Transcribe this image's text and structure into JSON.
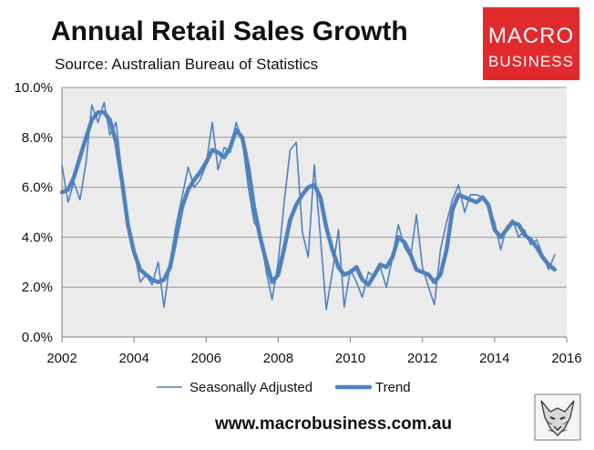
{
  "header": {
    "title": "Annual Retail Sales Growth",
    "subtitle": "Source: Australian Bureau of Statistics"
  },
  "logo": {
    "line1": "MACRO",
    "line2": "BUSINESS",
    "color": "#e12a2e"
  },
  "footer": {
    "url": "www.macrobusiness.com.au"
  },
  "colors": {
    "series": "#4f81bd",
    "plot_bg": "#ebebeb"
  },
  "chart_data": {
    "type": "line",
    "title": "Annual Retail Sales Growth",
    "xlim": [
      2002,
      2016
    ],
    "ylim": [
      0,
      10
    ],
    "x_ticks": [
      "2002",
      "2004",
      "2006",
      "2008",
      "2010",
      "2012",
      "2014",
      "2016"
    ],
    "y_ticks": [
      "0.0%",
      "2.0%",
      "4.0%",
      "6.0%",
      "8.0%",
      "10.0%"
    ],
    "grid": "horizontal",
    "legend": "bottom",
    "series": [
      {
        "name": "Seasonally Adjusted",
        "style": "thin",
        "x": [
          2002.0,
          2002.17,
          2002.33,
          2002.5,
          2002.67,
          2002.83,
          2003.0,
          2003.17,
          2003.33,
          2003.5,
          2003.67,
          2003.83,
          2004.0,
          2004.17,
          2004.33,
          2004.5,
          2004.67,
          2004.83,
          2005.0,
          2005.17,
          2005.33,
          2005.5,
          2005.67,
          2005.83,
          2006.0,
          2006.17,
          2006.33,
          2006.5,
          2006.67,
          2006.83,
          2007.0,
          2007.17,
          2007.33,
          2007.5,
          2007.67,
          2007.83,
          2008.0,
          2008.17,
          2008.33,
          2008.5,
          2008.67,
          2008.83,
          2009.0,
          2009.17,
          2009.33,
          2009.5,
          2009.67,
          2009.83,
          2010.0,
          2010.17,
          2010.33,
          2010.5,
          2010.67,
          2010.83,
          2011.0,
          2011.17,
          2011.33,
          2011.5,
          2011.67,
          2011.83,
          2012.0,
          2012.17,
          2012.33,
          2012.5,
          2012.67,
          2012.83,
          2013.0,
          2013.17,
          2013.33,
          2013.5,
          2013.67,
          2013.83,
          2014.0,
          2014.17,
          2014.33,
          2014.5,
          2014.67,
          2014.83,
          2015.0,
          2015.17,
          2015.33,
          2015.5,
          2015.67
        ],
        "y": [
          6.9,
          5.4,
          6.2,
          5.5,
          7.0,
          9.3,
          8.6,
          9.4,
          8.1,
          8.6,
          6.4,
          4.7,
          3.5,
          2.2,
          2.5,
          2.1,
          3.0,
          1.2,
          3.0,
          4.5,
          5.6,
          6.8,
          6.0,
          6.3,
          6.9,
          8.6,
          6.7,
          7.6,
          7.4,
          8.6,
          7.9,
          6.0,
          4.6,
          4.2,
          2.6,
          1.5,
          3.0,
          5.5,
          7.5,
          7.8,
          4.2,
          3.2,
          6.9,
          4.0,
          1.1,
          2.6,
          4.3,
          1.2,
          2.7,
          2.2,
          1.6,
          2.6,
          2.4,
          2.8,
          2.0,
          3.2,
          4.5,
          3.6,
          3.2,
          4.9,
          2.8,
          2.0,
          1.3,
          3.5,
          4.6,
          5.5,
          6.1,
          5.0,
          5.7,
          5.7,
          5.6,
          5.2,
          4.6,
          3.5,
          4.4,
          4.7,
          4.0,
          4.3,
          3.7,
          3.9,
          3.3,
          2.7,
          3.3
        ]
      },
      {
        "name": "Trend",
        "style": "thick",
        "x": [
          2002.0,
          2002.17,
          2002.33,
          2002.5,
          2002.67,
          2002.83,
          2003.0,
          2003.17,
          2003.33,
          2003.5,
          2003.67,
          2003.83,
          2004.0,
          2004.17,
          2004.33,
          2004.5,
          2004.67,
          2004.83,
          2005.0,
          2005.17,
          2005.33,
          2005.5,
          2005.67,
          2005.83,
          2006.0,
          2006.17,
          2006.33,
          2006.5,
          2006.67,
          2006.83,
          2007.0,
          2007.17,
          2007.33,
          2007.5,
          2007.67,
          2007.83,
          2008.0,
          2008.17,
          2008.33,
          2008.5,
          2008.67,
          2008.83,
          2009.0,
          2009.17,
          2009.33,
          2009.5,
          2009.67,
          2009.83,
          2010.0,
          2010.17,
          2010.33,
          2010.5,
          2010.67,
          2010.83,
          2011.0,
          2011.17,
          2011.33,
          2011.5,
          2011.67,
          2011.83,
          2012.0,
          2012.17,
          2012.33,
          2012.5,
          2012.67,
          2012.83,
          2013.0,
          2013.17,
          2013.33,
          2013.5,
          2013.67,
          2013.83,
          2014.0,
          2014.17,
          2014.33,
          2014.5,
          2014.67,
          2014.83,
          2015.0,
          2015.17,
          2015.33,
          2015.5,
          2015.67
        ],
        "y": [
          5.8,
          5.9,
          6.4,
          7.2,
          8.0,
          8.7,
          9.0,
          9.0,
          8.7,
          7.8,
          6.2,
          4.5,
          3.4,
          2.7,
          2.5,
          2.3,
          2.2,
          2.3,
          2.8,
          4.0,
          5.2,
          5.9,
          6.3,
          6.6,
          7.0,
          7.5,
          7.4,
          7.2,
          7.6,
          8.3,
          8.0,
          6.8,
          5.2,
          4.0,
          3.0,
          2.2,
          2.5,
          3.6,
          4.7,
          5.3,
          5.7,
          6.0,
          6.1,
          5.6,
          4.4,
          3.5,
          2.8,
          2.5,
          2.6,
          2.8,
          2.3,
          2.1,
          2.5,
          2.9,
          2.8,
          3.2,
          4.0,
          3.8,
          3.3,
          2.7,
          2.6,
          2.5,
          2.2,
          2.5,
          3.5,
          5.1,
          5.7,
          5.6,
          5.5,
          5.4,
          5.6,
          5.3,
          4.3,
          4.0,
          4.3,
          4.6,
          4.5,
          4.1,
          3.9,
          3.6,
          3.2,
          2.9,
          2.7
        ]
      }
    ]
  }
}
